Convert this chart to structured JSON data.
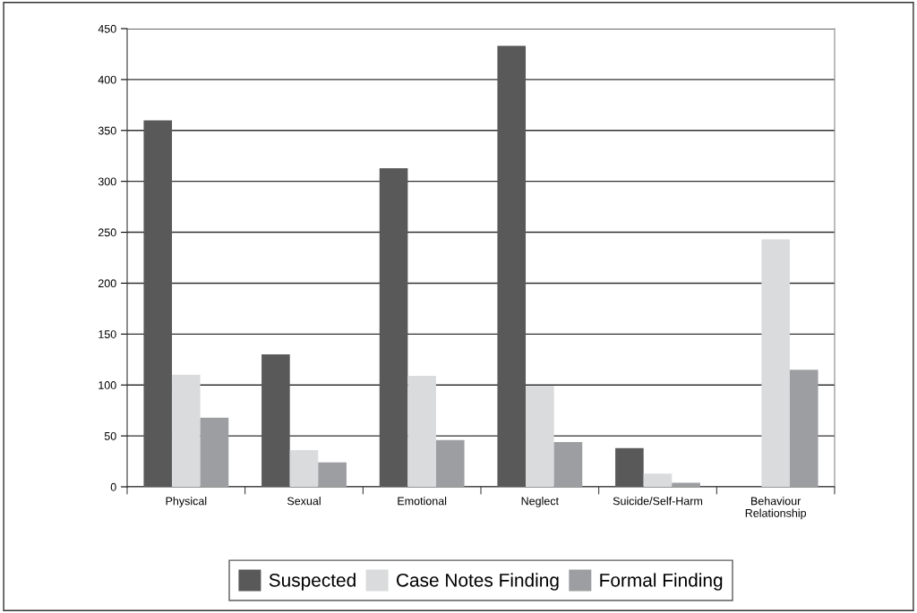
{
  "chart_data": {
    "type": "bar",
    "categories": [
      "Physical",
      "Sexual",
      "Emotional",
      "Neglect",
      "Suicide/Self-Harm",
      "Behaviour\nRelationship"
    ],
    "series": [
      {
        "name": "Suspected",
        "color": "#595959",
        "values": [
          360,
          130,
          313,
          433,
          38,
          null
        ]
      },
      {
        "name": "Case Notes Finding",
        "color": "#dadbdc",
        "values": [
          110,
          36,
          109,
          99,
          13,
          243
        ]
      },
      {
        "name": "Formal Finding",
        "color": "#9d9ea1",
        "values": [
          68,
          24,
          46,
          44,
          4,
          115
        ]
      }
    ],
    "ylim": [
      0,
      450
    ],
    "yticks": [
      0,
      50,
      100,
      150,
      200,
      250,
      300,
      350,
      400,
      450
    ],
    "grid": "y",
    "legend": "bottom"
  }
}
